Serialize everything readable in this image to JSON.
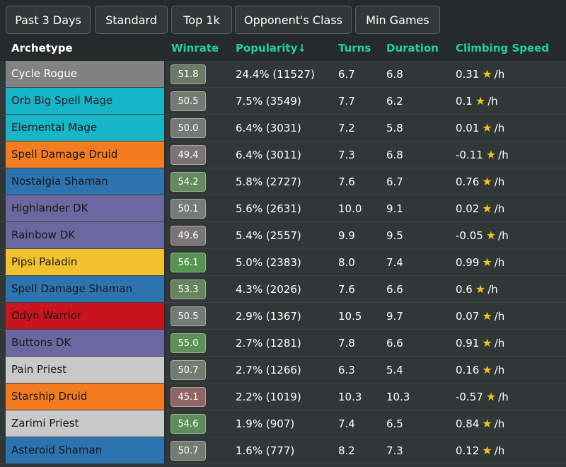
{
  "filters": [
    "Past 3 Days",
    "Standard",
    "Top 1k",
    "Opponent's Class",
    "Min Games"
  ],
  "columns": {
    "archetype": "Archetype",
    "winrate": "Winrate",
    "popularity": "Popularity↓",
    "turns": "Turns",
    "duration": "Duration",
    "climbing": "Climbing Speed"
  },
  "climb_unit": "/h",
  "rows": [
    {
      "name": "Cycle Rogue",
      "color": "#828282",
      "text_color": "#ffffff",
      "winrate": "51.8",
      "wr_color": "#6e7a68",
      "popularity": "24.4% (11527)",
      "turns": "6.7",
      "duration": "6.8",
      "climb": "0.31"
    },
    {
      "name": "Orb Big Spell Mage",
      "color": "#17b5c8",
      "text_color": "#1a1a1a",
      "winrate": "50.5",
      "wr_color": "#737b73",
      "popularity": "7.5% (3549)",
      "turns": "7.7",
      "duration": "6.2",
      "climb": "0.1"
    },
    {
      "name": "Elemental Mage",
      "color": "#17b5c8",
      "text_color": "#1a1a1a",
      "winrate": "50.0",
      "wr_color": "#767a76",
      "popularity": "6.4% (3031)",
      "turns": "7.2",
      "duration": "5.8",
      "climb": "0.01"
    },
    {
      "name": "Spell Damage Druid",
      "color": "#f47c20",
      "text_color": "#1a1a1a",
      "winrate": "49.4",
      "wr_color": "#7c7474",
      "popularity": "6.4% (3011)",
      "turns": "7.3",
      "duration": "6.8",
      "climb": "-0.11"
    },
    {
      "name": "Nostalgia Shaman",
      "color": "#2d73b0",
      "text_color": "#1a1a1a",
      "winrate": "54.2",
      "wr_color": "#628a5f",
      "popularity": "5.8% (2727)",
      "turns": "7.6",
      "duration": "6.7",
      "climb": "0.76"
    },
    {
      "name": "Highlander DK",
      "color": "#6b67a0",
      "text_color": "#1a1a1a",
      "winrate": "50.1",
      "wr_color": "#757b75",
      "popularity": "5.6% (2631)",
      "turns": "10.0",
      "duration": "9.1",
      "climb": "0.02"
    },
    {
      "name": "Rainbow DK",
      "color": "#6b67a0",
      "text_color": "#1a1a1a",
      "winrate": "49.6",
      "wr_color": "#7b7575",
      "popularity": "5.4% (2557)",
      "turns": "9.9",
      "duration": "9.5",
      "climb": "-0.05"
    },
    {
      "name": "Pipsi Paladin",
      "color": "#f2c12e",
      "text_color": "#1a1a1a",
      "winrate": "56.1",
      "wr_color": "#55944f",
      "popularity": "5.0% (2383)",
      "turns": "8.0",
      "duration": "7.4",
      "climb": "0.99"
    },
    {
      "name": "Spell Damage Shaman",
      "color": "#2d73b0",
      "text_color": "#1a1a1a",
      "winrate": "53.3",
      "wr_color": "#68845f",
      "popularity": "4.3% (2026)",
      "turns": "7.6",
      "duration": "6.6",
      "climb": "0.6"
    },
    {
      "name": "Odyn Warrior",
      "color": "#c8141c",
      "text_color": "#1a1a1a",
      "winrate": "50.5",
      "wr_color": "#737b73",
      "popularity": "2.9% (1367)",
      "turns": "10.5",
      "duration": "9.7",
      "climb": "0.07"
    },
    {
      "name": "Buttons DK",
      "color": "#6b67a0",
      "text_color": "#1a1a1a",
      "winrate": "55.0",
      "wr_color": "#5d8f58",
      "popularity": "2.7% (1281)",
      "turns": "7.8",
      "duration": "6.6",
      "climb": "0.91"
    },
    {
      "name": "Pain Priest",
      "color": "#c9c9c9",
      "text_color": "#1a1a1a",
      "winrate": "50.7",
      "wr_color": "#737c72",
      "popularity": "2.7% (1266)",
      "turns": "6.3",
      "duration": "5.4",
      "climb": "0.16"
    },
    {
      "name": "Starship Druid",
      "color": "#f47c20",
      "text_color": "#1a1a1a",
      "winrate": "45.1",
      "wr_color": "#8f6666",
      "popularity": "2.2% (1019)",
      "turns": "10.3",
      "duration": "10.3",
      "climb": "-0.57"
    },
    {
      "name": "Zarimi Priest",
      "color": "#c9c9c9",
      "text_color": "#1a1a1a",
      "winrate": "54.6",
      "wr_color": "#5f8d5a",
      "popularity": "1.9% (907)",
      "turns": "7.4",
      "duration": "6.5",
      "climb": "0.84"
    },
    {
      "name": "Asteroid Shaman",
      "color": "#2d73b0",
      "text_color": "#1a1a1a",
      "winrate": "50.7",
      "wr_color": "#737c72",
      "popularity": "1.6% (777)",
      "turns": "8.2",
      "duration": "7.3",
      "climb": "0.12"
    }
  ]
}
